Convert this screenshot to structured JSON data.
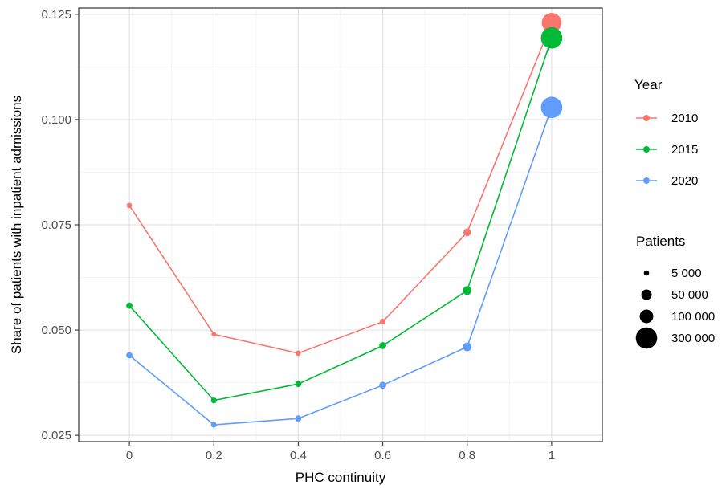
{
  "chart_data": {
    "type": "line",
    "title": "",
    "xlabel": "PHC continuity",
    "ylabel": "Share of patients with inpatient admissions",
    "x": [
      0,
      0.2,
      0.4,
      0.6,
      0.8,
      1
    ],
    "x_tick_labels": [
      "0",
      "0.2",
      "0.4",
      "0.6",
      "0.8",
      "1"
    ],
    "y_ticks": [
      0.025,
      0.05,
      0.075,
      0.1,
      0.125
    ],
    "y_tick_labels": [
      "0.025",
      "0.050",
      "0.075",
      "0.100",
      "0.125"
    ],
    "xlim": [
      -0.12,
      1.12
    ],
    "ylim": [
      0.0235,
      0.1265
    ],
    "grid": true,
    "legend_placement": "right",
    "color_legend_title": "Year",
    "size_legend_title": "Patients",
    "series": [
      {
        "name": "2010",
        "color": "#F8766D",
        "values": [
          0.0796,
          0.049,
          0.0445,
          0.052,
          0.0732,
          0.123
        ],
        "marker_sizes": [
          5000,
          3000,
          5000,
          8000,
          20000,
          250000
        ]
      },
      {
        "name": "2015",
        "color": "#00BA38",
        "values": [
          0.0558,
          0.0333,
          0.0372,
          0.0463,
          0.0594,
          0.1194
        ],
        "marker_sizes": [
          10000,
          8000,
          10000,
          15000,
          30000,
          300000
        ]
      },
      {
        "name": "2020",
        "color": "#619CFF",
        "values": [
          0.044,
          0.0275,
          0.029,
          0.0369,
          0.046,
          0.1029
        ],
        "marker_sizes": [
          10000,
          7000,
          10000,
          15000,
          30000,
          300000
        ]
      }
    ],
    "size_legend": [
      {
        "label": "5 000",
        "value": 5000
      },
      {
        "label": "50 000",
        "value": 50000
      },
      {
        "label": "100 000",
        "value": 100000
      },
      {
        "label": "300 000",
        "value": 300000
      }
    ]
  }
}
